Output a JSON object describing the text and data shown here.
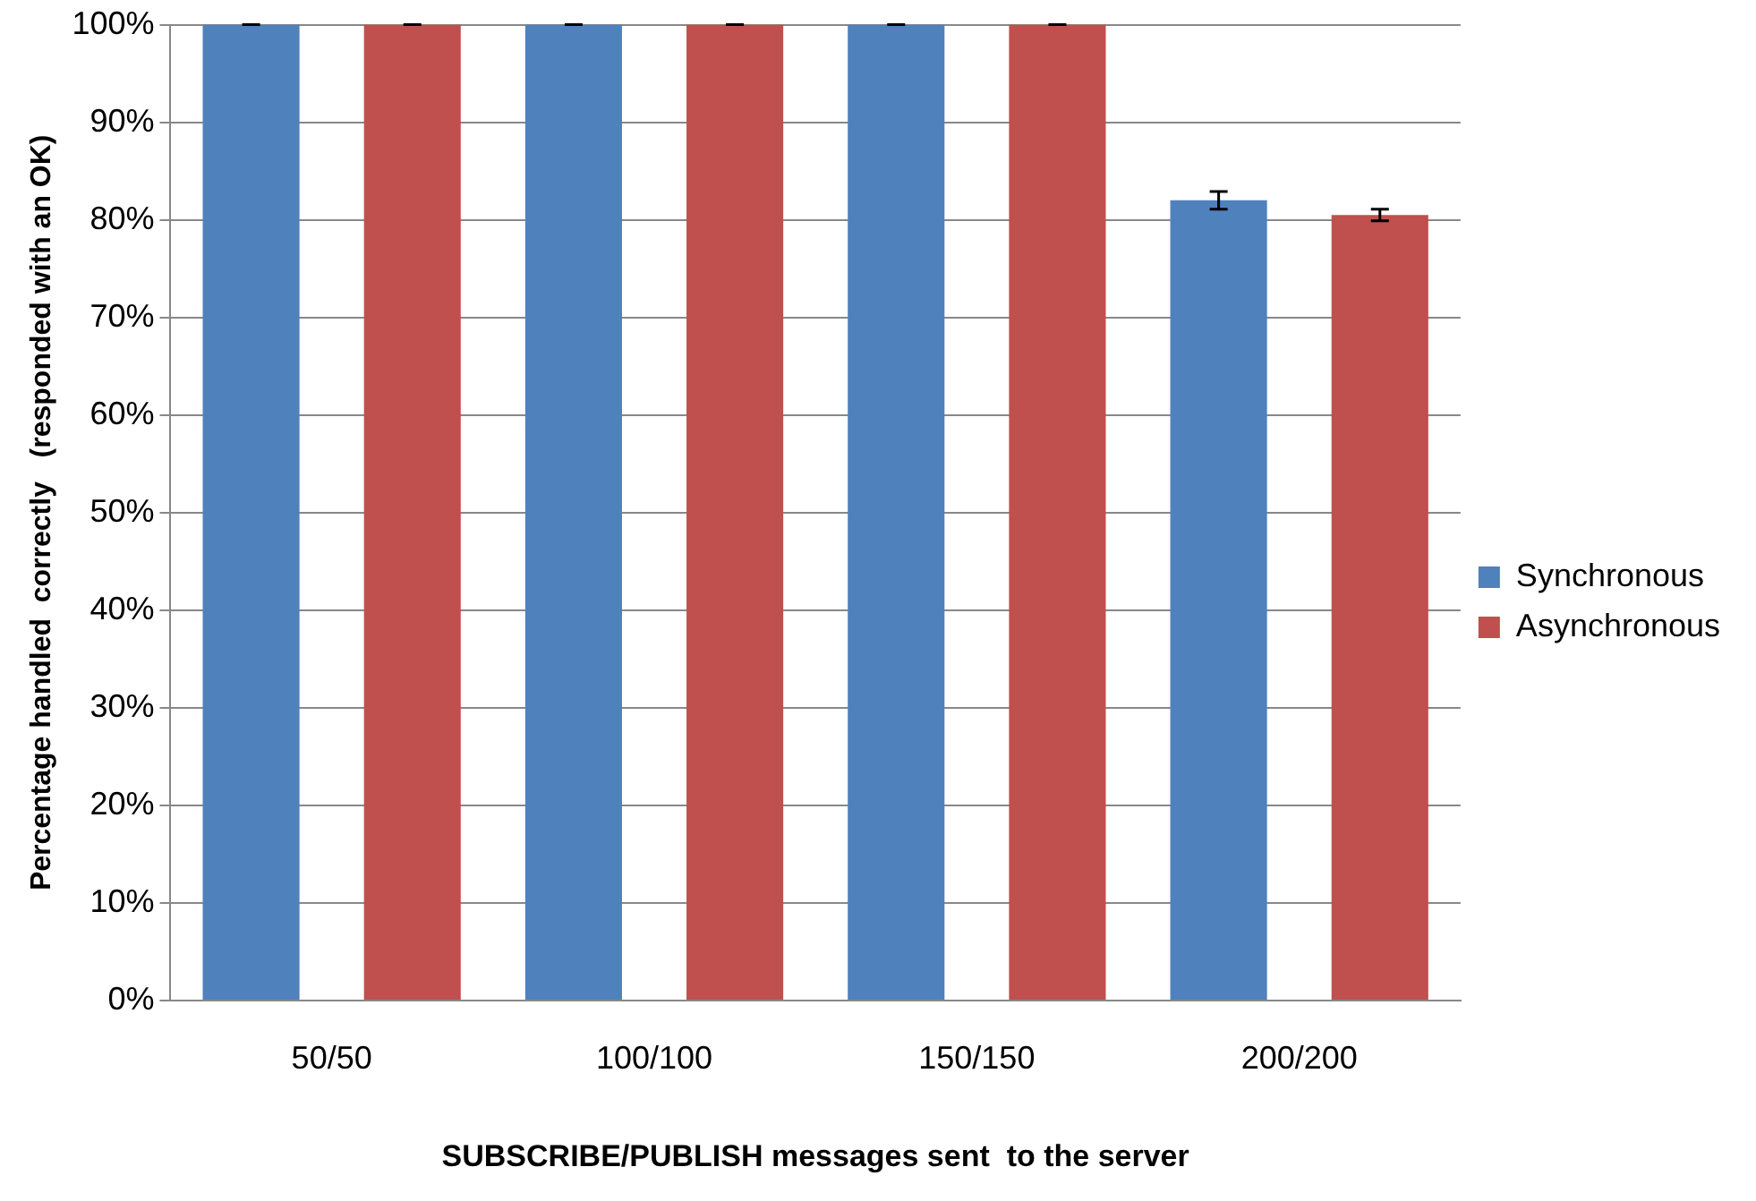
{
  "chart_data": {
    "type": "bar",
    "xlabel": "SUBSCRIBE/PUBLISH messages sent  to the server",
    "ylabel": "Percentage handled  correctly   (responded with an OK)",
    "categories": [
      "50/50",
      "100/100",
      "150/150",
      "200/200"
    ],
    "series": [
      {
        "name": "Synchronous",
        "color": "#4f81bd",
        "values": [
          100,
          100,
          100,
          82
        ],
        "errors": [
          0,
          0,
          0,
          0.9
        ]
      },
      {
        "name": "Asynchronous",
        "color": "#c0504d",
        "values": [
          100,
          100,
          100,
          80.5
        ],
        "errors": [
          0,
          0,
          0,
          0.6
        ]
      }
    ],
    "ylim": [
      0,
      100
    ],
    "yticks": [
      {
        "value": 0,
        "label": "0%"
      },
      {
        "value": 10,
        "label": "10%"
      },
      {
        "value": 20,
        "label": "20%"
      },
      {
        "value": 30,
        "label": "30%"
      },
      {
        "value": 40,
        "label": "40%"
      },
      {
        "value": 50,
        "label": "50%"
      },
      {
        "value": 60,
        "label": "60%"
      },
      {
        "value": 70,
        "label": "70%"
      },
      {
        "value": 80,
        "label": "80%"
      },
      {
        "value": 90,
        "label": "90%"
      },
      {
        "value": 100,
        "label": "100%"
      }
    ],
    "grid": "y",
    "legend": "right"
  }
}
